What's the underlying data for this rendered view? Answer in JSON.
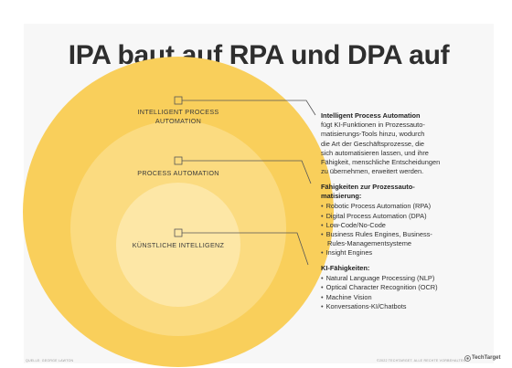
{
  "title": "IPA baut auf RPA und DPA auf",
  "colors": {
    "outer": "#f9cf5b",
    "middle": "#fbdb80",
    "inner": "#fde7a6",
    "connector": "#555555",
    "background": "#f7f7f7"
  },
  "circles": {
    "outer_label_line1": "INTELLIGENT PROCESS",
    "outer_label_line2": "AUTOMATION",
    "middle_label": "PROCESS AUTOMATION",
    "inner_label": "KÜNSTLICHE INTELLIGENZ"
  },
  "descriptions": {
    "ipa": {
      "head": "Intelligent Process Automation",
      "lines": [
        "fügt KI-Funktionen in Prozessauto-",
        "matisierungs-Tools hinzu, wodurch",
        "die Art der Geschäftsprozesse, die",
        "sich automatisieren lassen, und ihre",
        "Fähigkeit, menschliche Entscheidungen",
        "zu übernehmen, erweitert werden."
      ]
    },
    "pa": {
      "head_line1": "Fähigkeiten zur Prozessauto-",
      "head_line2": "matisierung:",
      "items": [
        "Robotic Process Automation (RPA)",
        "Digital Process Automation (DPA)",
        "Low-Code/No-Code",
        "Business Rules Engines, Business-",
        "Insight Engines"
      ],
      "item4_continuation": "Rules-Managementsysteme"
    },
    "ki": {
      "head": "KI-Fähigkeiten:",
      "items": [
        "Natural Language Processing (NLP)",
        "Optical Character Recognition (OCR)",
        "Machine Vision",
        "Konversations-KI/Chatbots"
      ]
    }
  },
  "footer": {
    "source": "QUELLE: GEORGE LAWTON",
    "copyright": "©2022 TECHTARGET. ALLE RECHTE VORBEHALTEN",
    "logo": "TechTarget"
  }
}
